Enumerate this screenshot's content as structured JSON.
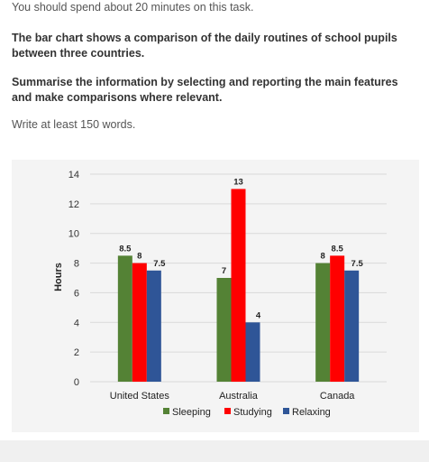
{
  "task": {
    "time_note": "You should spend about 20 minutes on this task.",
    "paragraph1": "The bar chart shows a comparison of the daily routines of school pupils between three countries.",
    "paragraph2": "Summarise the information by selecting and reporting the main features and make comparisons where relevant.",
    "word_note": "Write at least 150 words."
  },
  "chart_data": {
    "type": "bar",
    "title": "",
    "xlabel": "",
    "ylabel": "Hours",
    "ylim": [
      0,
      14
    ],
    "yticks": [
      0,
      2,
      4,
      6,
      8,
      10,
      12,
      14
    ],
    "grid": true,
    "legend_position": "bottom",
    "categories": [
      "United States",
      "Australia",
      "Canada"
    ],
    "series": [
      {
        "name": "Sleeping",
        "color": "#548235",
        "values": [
          8.5,
          7,
          8
        ],
        "labels": [
          "8.5",
          "7",
          "8"
        ]
      },
      {
        "name": "Studying",
        "color": "#ff0000",
        "values": [
          8,
          13,
          8.5
        ],
        "labels": [
          "8",
          "13",
          "8.5"
        ]
      },
      {
        "name": "Relaxing",
        "color": "#2f5597",
        "values": [
          7.5,
          4,
          7.5
        ],
        "labels": [
          "7.5",
          "4",
          "7.5"
        ]
      }
    ]
  }
}
